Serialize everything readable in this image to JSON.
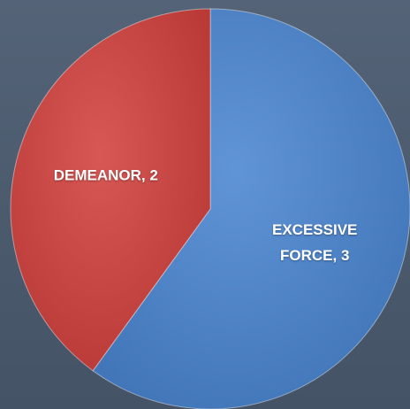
{
  "chart_data": {
    "type": "pie",
    "values": [
      3,
      2
    ],
    "value_labels": [
      "EXCESSIVE FORCE, 3",
      "DEMEANOR, 2"
    ],
    "colors": [
      "#4a86d2",
      "#d2413e"
    ],
    "start_angle": 0,
    "direction": "clockwise"
  }
}
